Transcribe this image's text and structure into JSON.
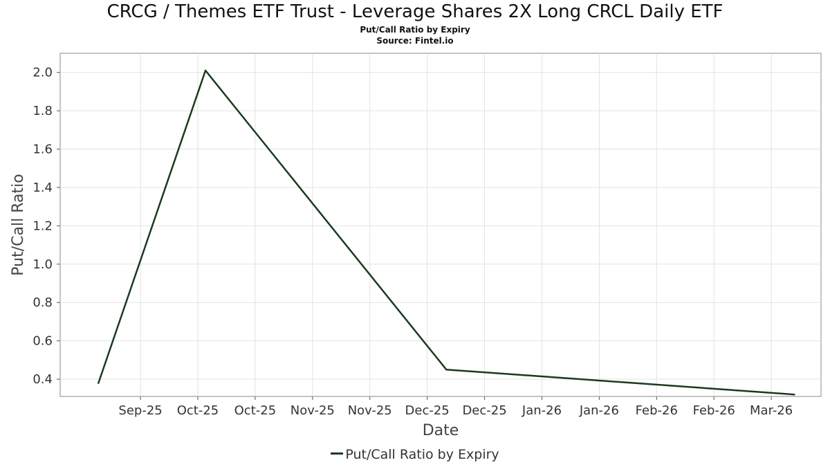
{
  "chart_data": {
    "type": "line",
    "title": "CRCG / Themes ETF Trust - Leverage Shares 2X Long CRCL Daily ETF",
    "subtitle": "Put/Call Ratio by Expiry",
    "source": "Source: Fintel.io",
    "xlabel": "Date",
    "ylabel": "Put/Call Ratio",
    "x_tick_labels": [
      "Sep-25",
      "Oct-25",
      "Oct-25",
      "Nov-25",
      "Nov-25",
      "Dec-25",
      "Dec-25",
      "Jan-26",
      "Jan-26",
      "Feb-26",
      "Feb-26",
      "Mar-26"
    ],
    "y_ticks": [
      0.4,
      0.6,
      0.8,
      1.0,
      1.2,
      1.4,
      1.6,
      1.8,
      2.0
    ],
    "y_tick_labels": [
      "0.4",
      "0.6",
      "0.8",
      "1.0",
      "1.2",
      "1.4",
      "1.6",
      "1.8",
      "2.0"
    ],
    "ylim": [
      0.31,
      2.1
    ],
    "xlim": [
      "2025-09-09",
      "2026-03-27"
    ],
    "x_ticks": [
      "2025-09-30",
      "2025-10-15",
      "2025-10-30",
      "2025-11-14",
      "2025-11-29",
      "2025-12-14",
      "2025-12-29",
      "2026-01-13",
      "2026-01-28",
      "2026-02-12",
      "2026-02-27",
      "2026-03-14"
    ],
    "grid": true,
    "legend_position": "bottom-center",
    "series": [
      {
        "name": "Put/Call Ratio by Expiry",
        "color": "#1a3a1f",
        "x": [
          "2025-09-19",
          "2025-10-17",
          "2025-12-19",
          "2026-03-20"
        ],
        "y": [
          0.38,
          2.01,
          0.45,
          0.32
        ]
      }
    ]
  }
}
